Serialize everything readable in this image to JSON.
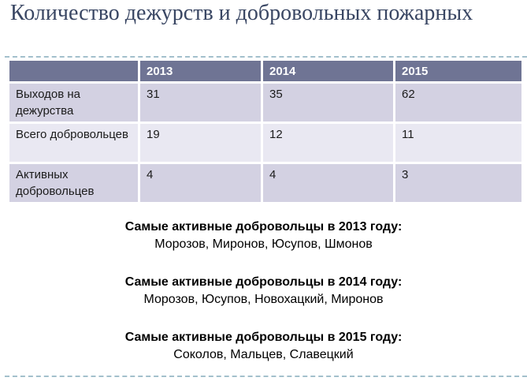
{
  "slide": {
    "title": "Количество дежурств и добровольных пожарных"
  },
  "table": {
    "columns": [
      "",
      "2013",
      "2014",
      "2015"
    ],
    "rows": [
      {
        "label": "Выходов на дежурства",
        "values": [
          "31",
          "35",
          "62"
        ]
      },
      {
        "label": "Всего добровольцев",
        "values": [
          "19",
          "12",
          "11"
        ]
      },
      {
        "label": "Активных добровольцев",
        "values": [
          "4",
          "4",
          "3"
        ]
      }
    ]
  },
  "notes": [
    {
      "heading": "Самые активные добровольцы в 2013 году:",
      "names": "Морозов, Миронов, Юсупов, Шмонов"
    },
    {
      "heading": "Самые активные добровольцы в 2014 году:",
      "names": "Морозов, Юсупов, Новохацкий, Миронов"
    },
    {
      "heading": "Самые активные добровольцы в 2015 году:",
      "names": "Соколов, Мальцев, Славецкий"
    }
  ],
  "colors": {
    "title_text": "#394663",
    "table_header_bg": "#6f7494",
    "row_band_dark": "#d3d1e2",
    "row_band_light": "#e9e8f2",
    "dashed_line": "#a3c0cc",
    "body_text": "#000000"
  }
}
